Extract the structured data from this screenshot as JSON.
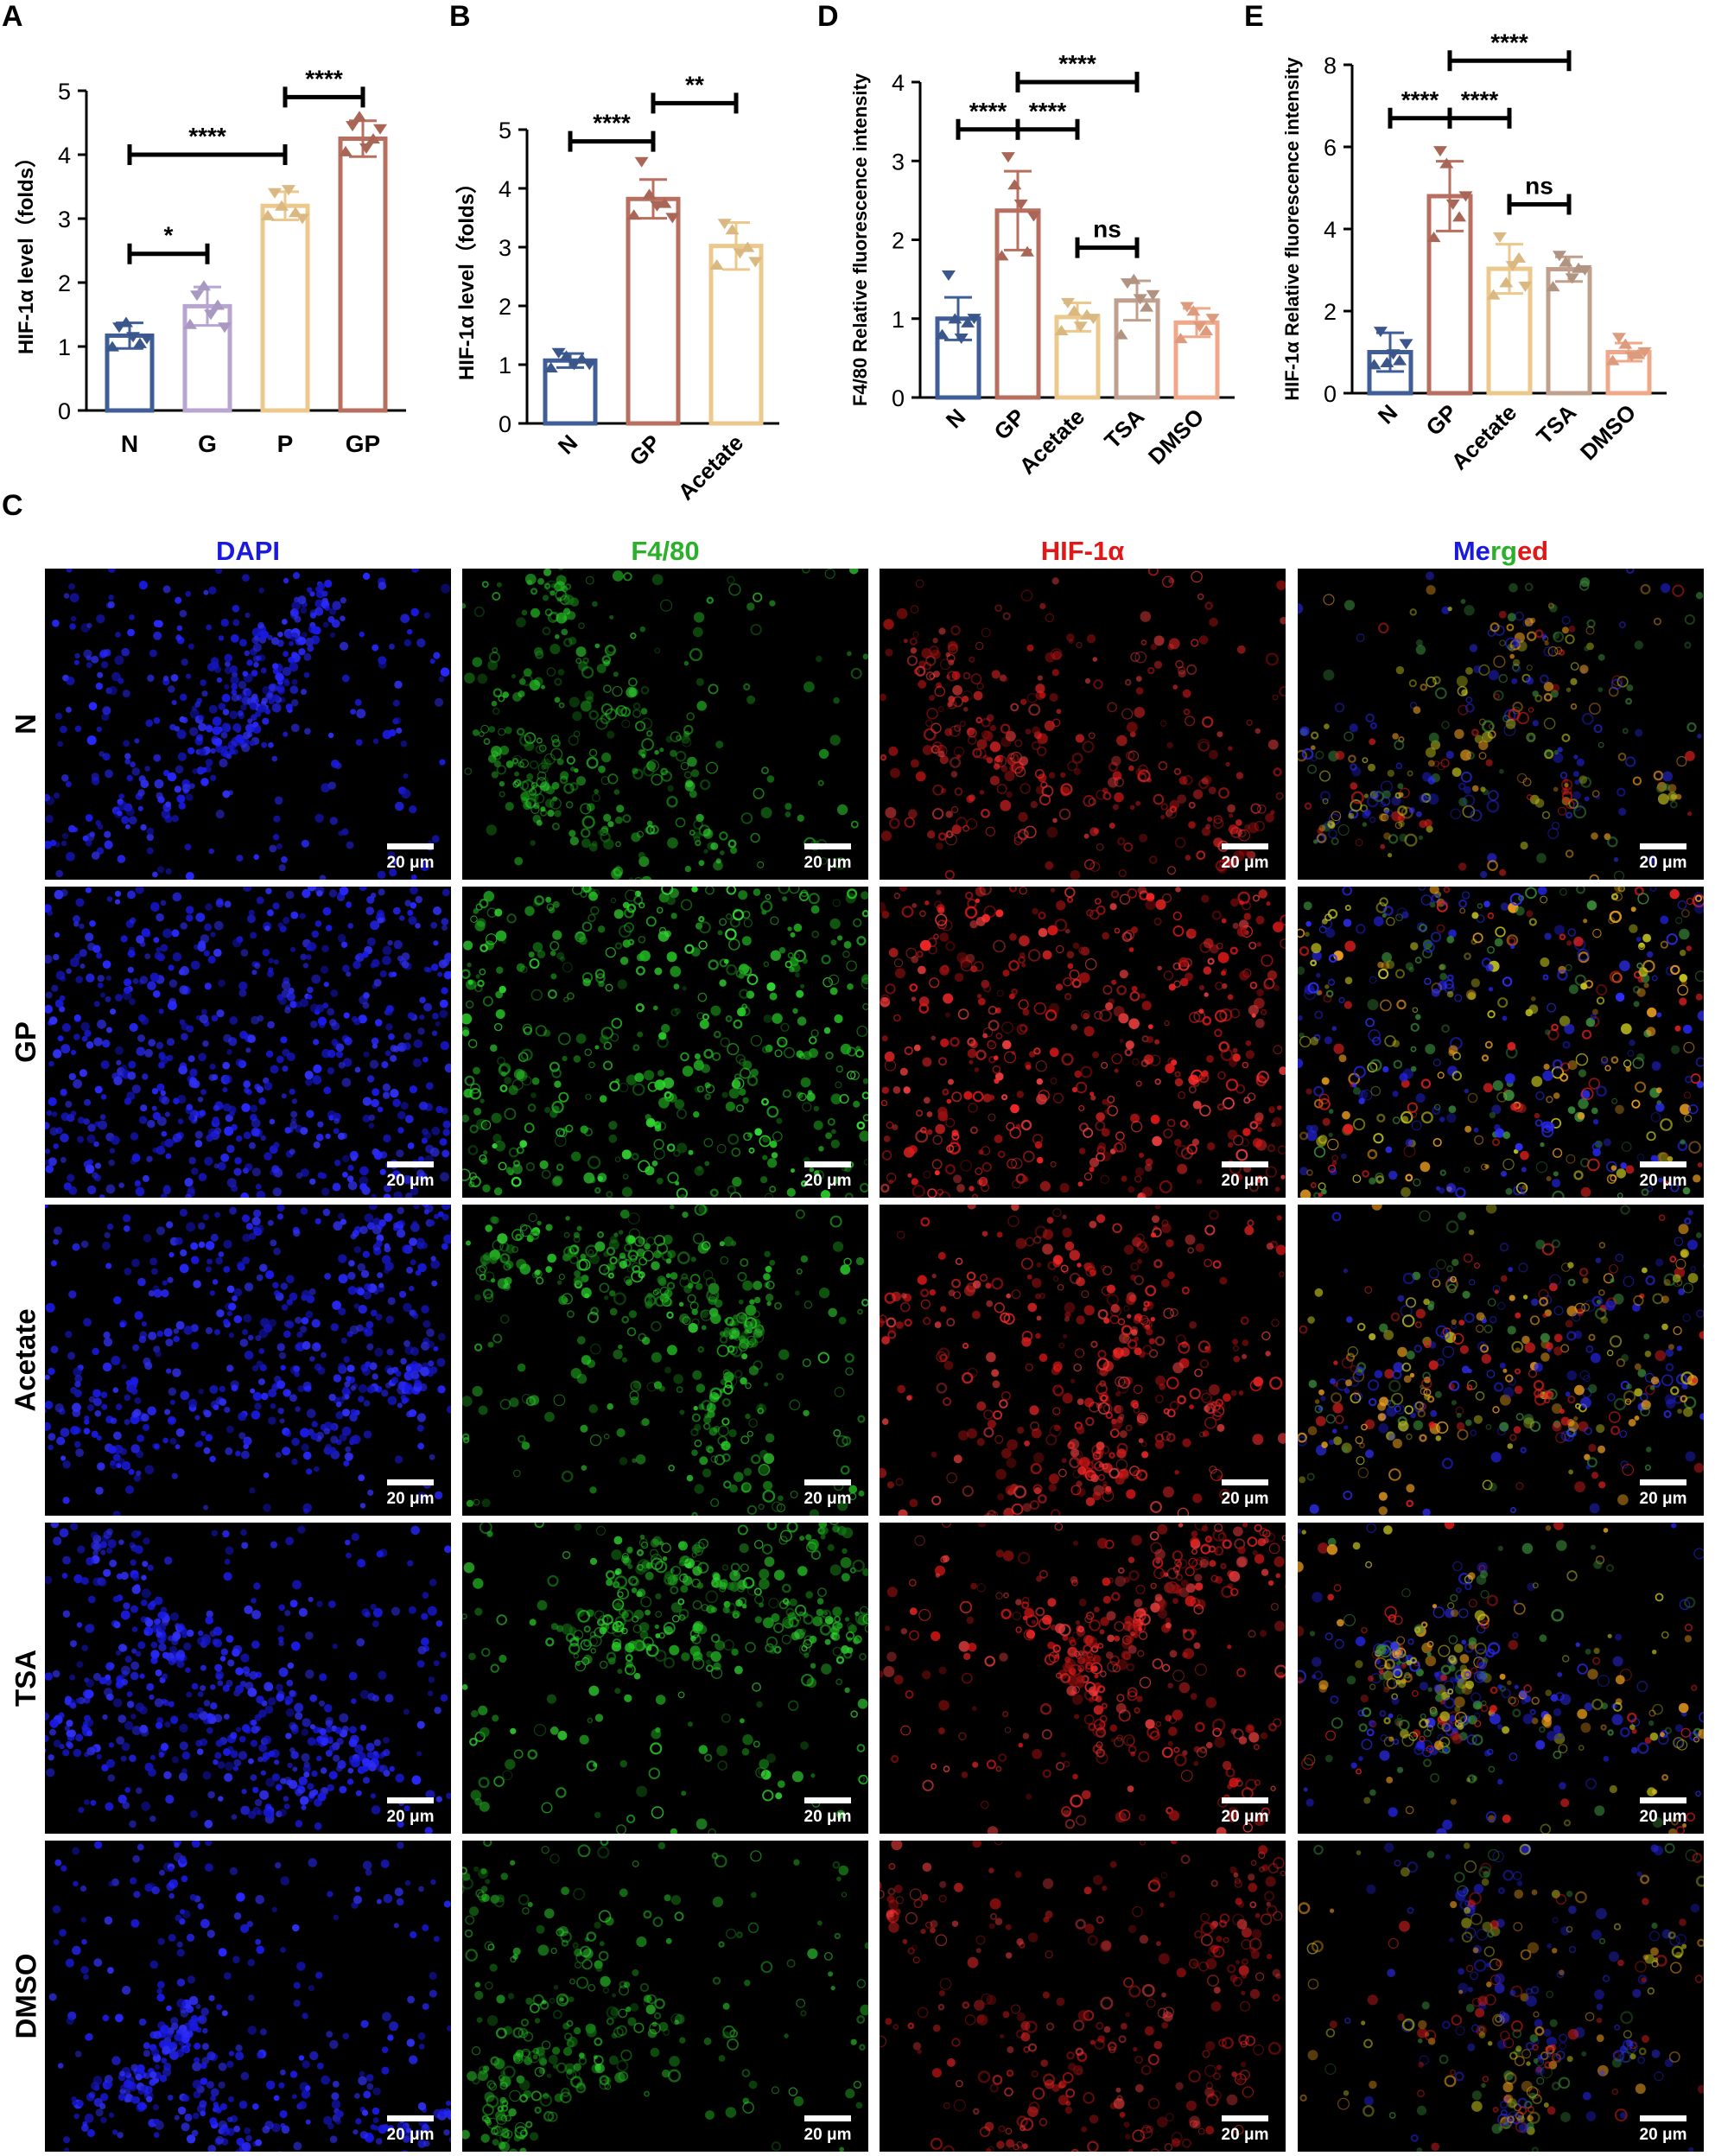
{
  "panels": {
    "A": "A",
    "B": "B",
    "C": "C",
    "D": "D",
    "E": "E"
  },
  "colors": {
    "N": "#3f5d97",
    "G": "#b8a5d2",
    "P": "#ecc88c",
    "GP": "#b86f5f",
    "Acetate": "#ecc88c",
    "TSA": "#c0a08c",
    "DMSO": "#f0a888"
  },
  "chart_data": [
    {
      "id": "A",
      "type": "bar",
      "ylabel": "HIF-1α level（folds）",
      "categories": [
        "N",
        "G",
        "P",
        "GP"
      ],
      "values": [
        1.17,
        1.63,
        3.2,
        4.25
      ],
      "errors": [
        0.2,
        0.3,
        0.22,
        0.28
      ],
      "points": [
        [
          1.0,
          1.3,
          1.38,
          1.15,
          1.05,
          1.12
        ],
        [
          1.35,
          1.8,
          1.95,
          1.5,
          1.65,
          1.3
        ],
        [
          3.05,
          3.4,
          3.2,
          3.45,
          3.1,
          3.0
        ],
        [
          4.05,
          4.45,
          4.6,
          4.1,
          4.25,
          4.4
        ]
      ],
      "ylim": [
        0,
        5
      ],
      "yticks": [
        0,
        1,
        2,
        3,
        4,
        5
      ],
      "sig": [
        {
          "from": 0,
          "to": 1,
          "y": 2.45,
          "label": "*"
        },
        {
          "from": 0,
          "to": 2,
          "y": 4.0,
          "label": "****"
        },
        {
          "from": 2,
          "to": 3,
          "y": 4.9,
          "label": "****"
        }
      ]
    },
    {
      "id": "B",
      "type": "bar",
      "ylabel": "HIF-1α level（folds）",
      "categories": [
        "N",
        "GP",
        "Acetate"
      ],
      "values": [
        1.07,
        3.82,
        3.02
      ],
      "errors": [
        0.12,
        0.33,
        0.4
      ],
      "points": [
        [
          0.95,
          1.2,
          1.15,
          1.0,
          1.1,
          1.0
        ],
        [
          3.55,
          4.45,
          3.9,
          3.7,
          3.75,
          3.5
        ],
        [
          2.7,
          3.4,
          3.3,
          2.9,
          3.0,
          2.75
        ]
      ],
      "ylim": [
        0,
        5
      ],
      "yticks": [
        0,
        1,
        2,
        3,
        4,
        5
      ],
      "xrotate": true,
      "sig": [
        {
          "from": 0,
          "to": 1,
          "y": 4.8,
          "label": "****"
        },
        {
          "from": 1,
          "to": 2,
          "y": 5.45,
          "label": "**"
        }
      ]
    },
    {
      "id": "D",
      "type": "bar",
      "ylabel": "F4/80 Relative fluorescence intensity",
      "categories": [
        "N",
        "GP",
        "Acetate",
        "TSA",
        "DMSO"
      ],
      "values": [
        1.0,
        2.37,
        1.02,
        1.23,
        0.95
      ],
      "errors": [
        0.27,
        0.5,
        0.18,
        0.25,
        0.18
      ],
      "points": [
        [
          0.8,
          1.55,
          1.0,
          0.75,
          0.95,
          1.0
        ],
        [
          1.8,
          3.05,
          2.7,
          2.45,
          1.85,
          2.3
        ],
        [
          0.85,
          1.2,
          1.1,
          0.9,
          1.05,
          1.0
        ],
        [
          0.8,
          1.45,
          1.5,
          1.25,
          1.15,
          1.3
        ],
        [
          0.75,
          1.15,
          1.1,
          0.9,
          0.85,
          1.0
        ]
      ],
      "ylim": [
        0,
        4
      ],
      "yticks": [
        0,
        1,
        2,
        3,
        4
      ],
      "xrotate": true,
      "sig": [
        {
          "from": 0,
          "to": 1,
          "y": 3.4,
          "label": "****"
        },
        {
          "from": 1,
          "to": 2,
          "y": 3.4,
          "label": "****"
        },
        {
          "from": 1,
          "to": 3,
          "y": 4.0,
          "label": "****"
        },
        {
          "from": 2,
          "to": 3,
          "y": 1.9,
          "label": "ns"
        }
      ]
    },
    {
      "id": "E",
      "type": "bar",
      "ylabel": "HIF-1α Relative fluorescence intensity",
      "categories": [
        "N",
        "GP",
        "Acetate",
        "TSA",
        "DMSO"
      ],
      "values": [
        1.0,
        4.8,
        3.03,
        3.02,
        1.0
      ],
      "errors": [
        0.47,
        0.85,
        0.6,
        0.3,
        0.22
      ],
      "points": [
        [
          0.7,
          1.5,
          0.75,
          0.95,
          0.8,
          1.2
        ],
        [
          3.8,
          5.9,
          5.6,
          4.6,
          4.3,
          4.8
        ],
        [
          2.4,
          3.8,
          2.7,
          3.1,
          3.3,
          2.6
        ],
        [
          2.6,
          3.35,
          3.2,
          2.8,
          3.05,
          3.0
        ],
        [
          0.8,
          1.35,
          1.2,
          0.9,
          0.95,
          1.0
        ]
      ],
      "ylim": [
        0,
        8
      ],
      "yticks": [
        0,
        2,
        4,
        6,
        8
      ],
      "xrotate": true,
      "sig": [
        {
          "from": 0,
          "to": 1,
          "y": 6.7,
          "label": "****"
        },
        {
          "from": 1,
          "to": 2,
          "y": 6.7,
          "label": "****"
        },
        {
          "from": 1,
          "to": 3,
          "y": 8.1,
          "label": "****"
        },
        {
          "from": 2,
          "to": 3,
          "y": 4.6,
          "label": "ns"
        }
      ]
    }
  ],
  "micro": {
    "columns": [
      {
        "key": "DAPI",
        "label": "DAPI",
        "color": "#1a1adf"
      },
      {
        "key": "F480",
        "label": "F4/80",
        "color": "#2ab02a"
      },
      {
        "key": "HIF",
        "label": "HIF-1α",
        "color": "#e01818"
      },
      {
        "key": "Merged",
        "label_parts": [
          "Me",
          "rg",
          "ed"
        ],
        "part_colors": [
          "#1a1adf",
          "#2ab02a",
          "#e01818"
        ]
      }
    ],
    "rows": [
      "N",
      "GP",
      "Acetate",
      "TSA",
      "DMSO"
    ],
    "scale_bar": "20 μm"
  }
}
